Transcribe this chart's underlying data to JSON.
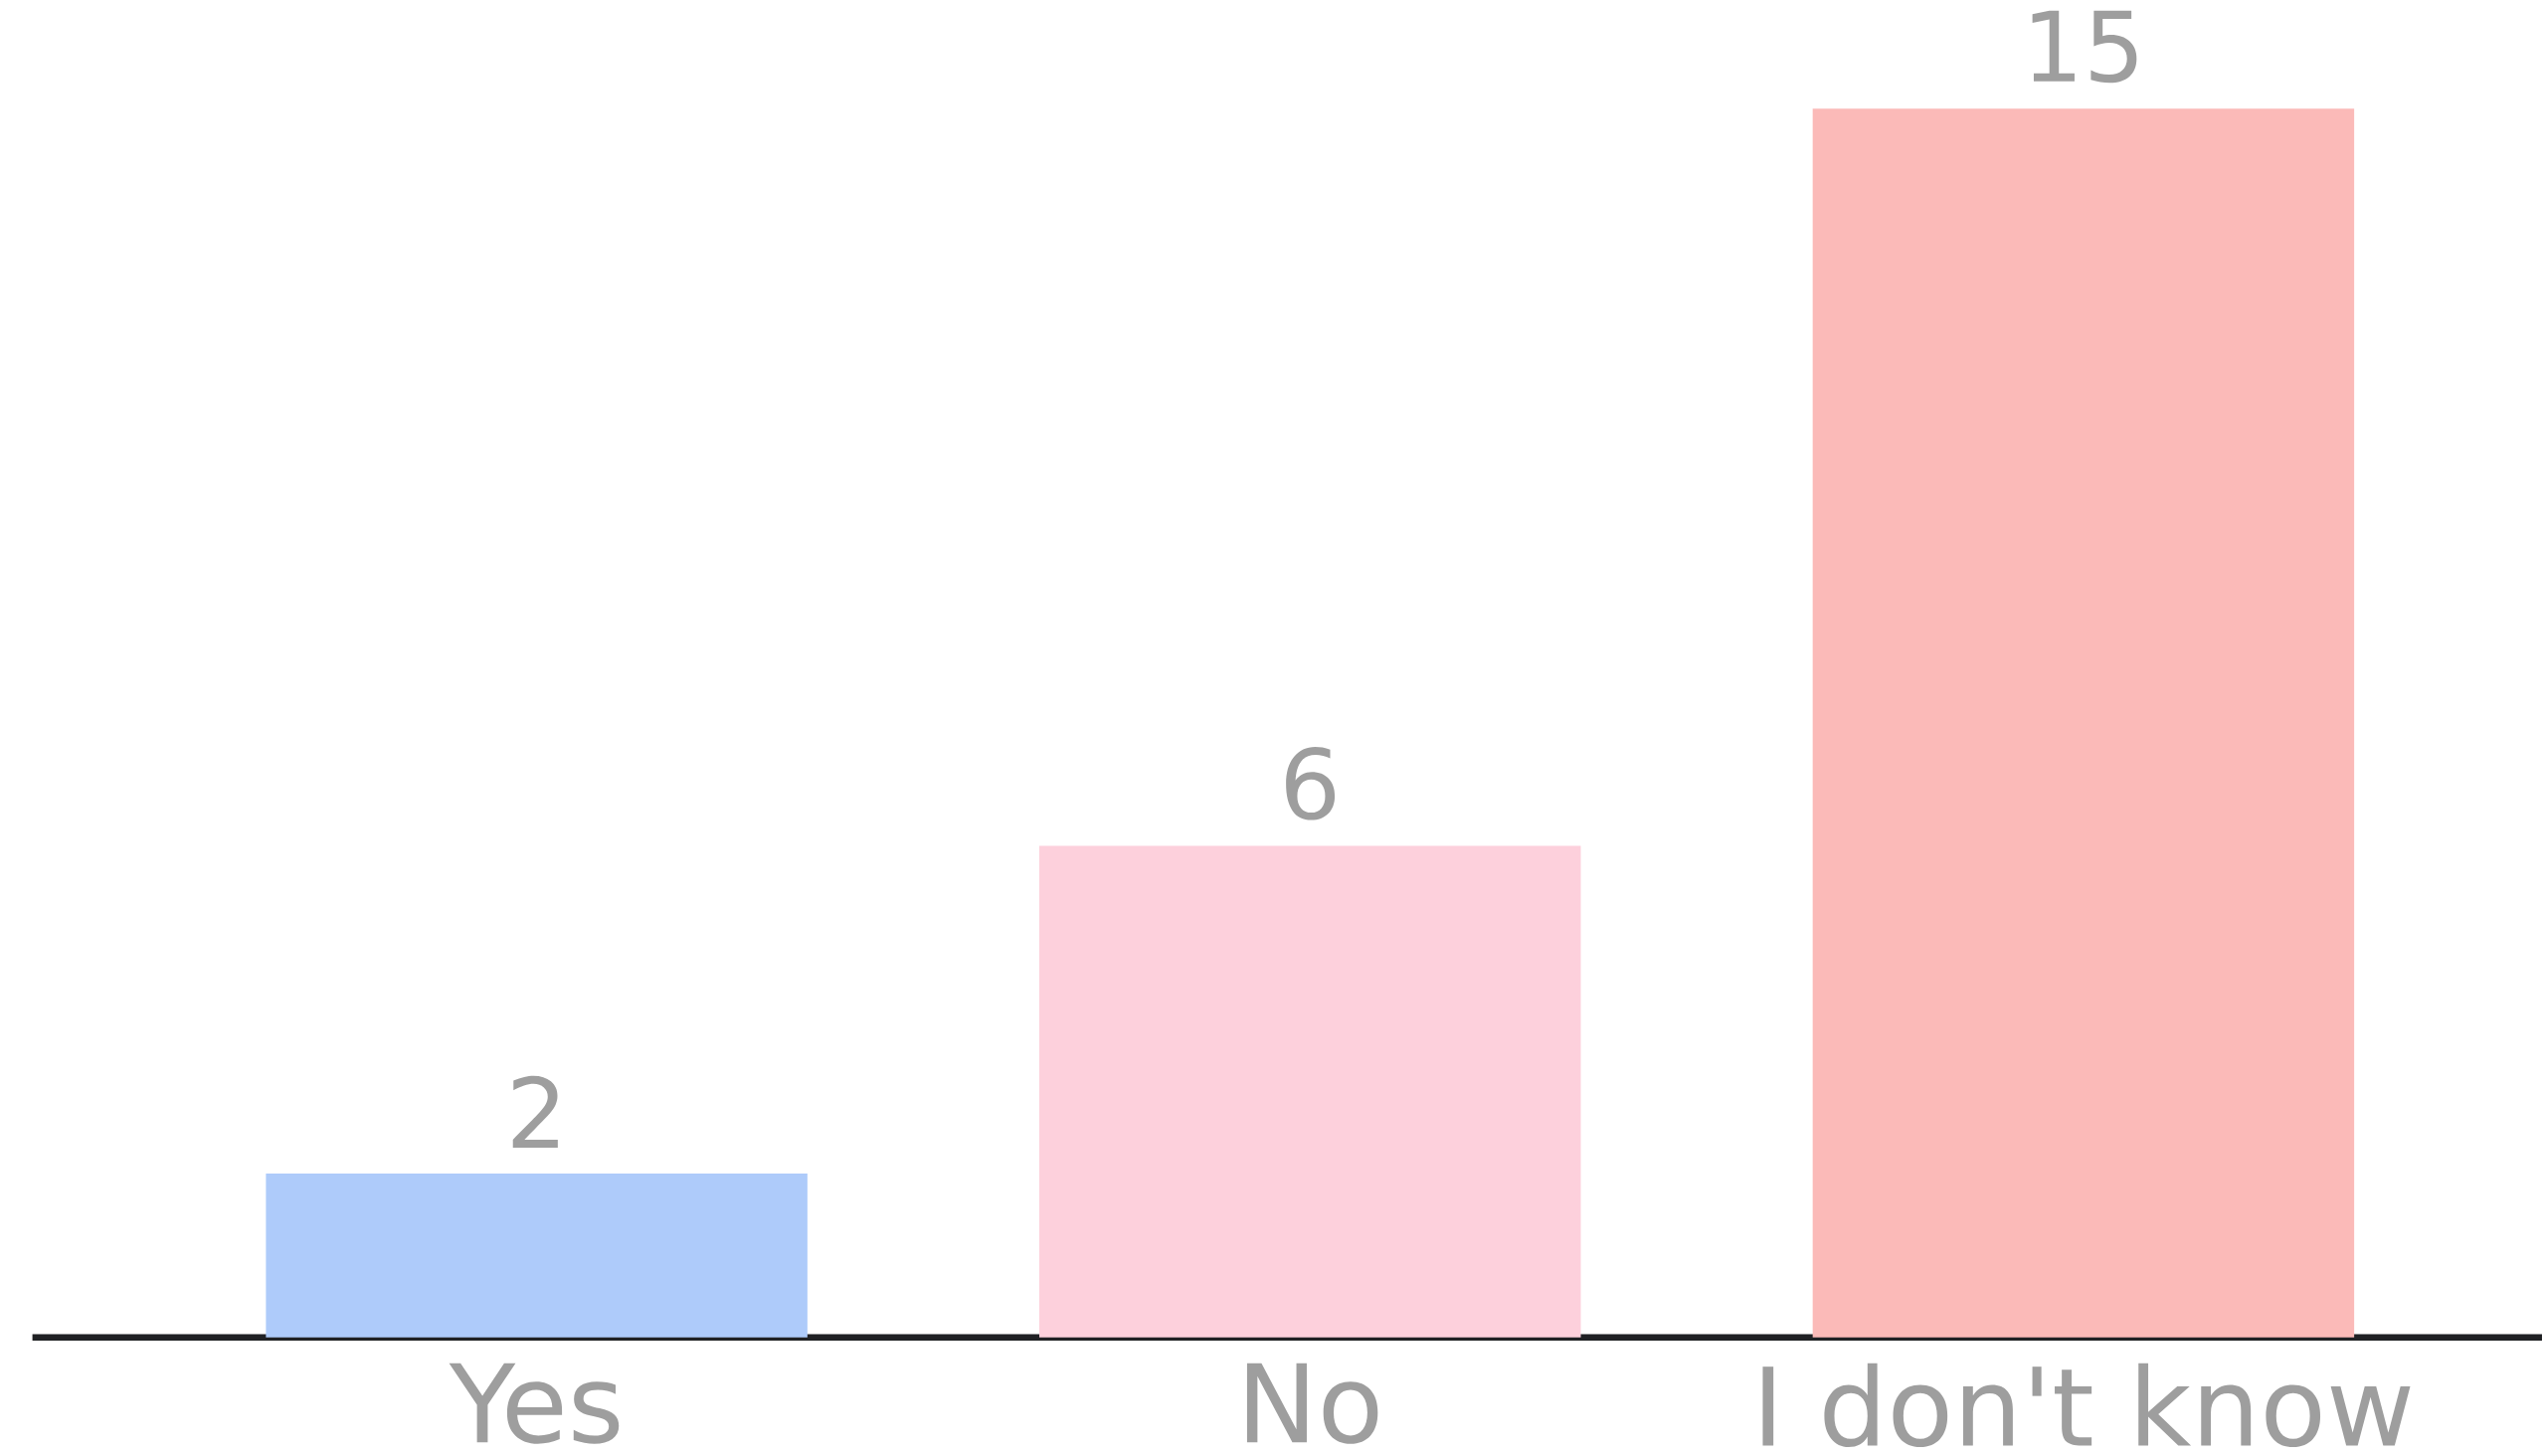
{
  "chart_data": {
    "type": "bar",
    "categories": [
      "Yes",
      "No",
      "I don't know"
    ],
    "values": [
      2,
      6,
      15
    ],
    "colors": [
      "#aecbfa",
      "#fdd0dc",
      "#fbbab8"
    ],
    "data_labels": true
  }
}
